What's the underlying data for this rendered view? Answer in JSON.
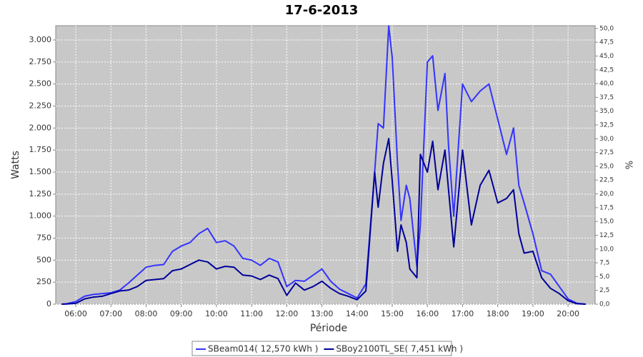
{
  "chart_data": {
    "type": "line",
    "title": "17-6-2013",
    "x_label": "Période",
    "y_label": "Watts",
    "y2_label": "%",
    "x": [
      5.6,
      5.75,
      6.0,
      6.25,
      6.5,
      6.75,
      7.0,
      7.25,
      7.5,
      7.75,
      8.0,
      8.25,
      8.5,
      8.75,
      9.0,
      9.25,
      9.5,
      9.75,
      10.0,
      10.25,
      10.5,
      10.75,
      11.0,
      11.25,
      11.5,
      11.75,
      12.0,
      12.25,
      12.5,
      12.75,
      13.0,
      13.25,
      13.5,
      13.75,
      14.0,
      14.25,
      14.5,
      14.6,
      14.75,
      14.9,
      15.0,
      15.15,
      15.25,
      15.4,
      15.5,
      15.7,
      15.8,
      16.0,
      16.15,
      16.3,
      16.5,
      16.6,
      16.75,
      17.0,
      17.25,
      17.5,
      17.75,
      18.0,
      18.25,
      18.45,
      18.6,
      18.75,
      19.0,
      19.25,
      19.5,
      19.75,
      20.0,
      20.25,
      20.5
    ],
    "series": [
      {
        "name": "SBeam014( 12,570 kWh )",
        "color": "#3333ff",
        "values": [
          0,
          5,
          30,
          90,
          110,
          120,
          130,
          160,
          240,
          330,
          420,
          440,
          450,
          600,
          660,
          700,
          800,
          860,
          700,
          720,
          660,
          520,
          500,
          440,
          520,
          480,
          200,
          270,
          260,
          330,
          400,
          260,
          170,
          120,
          70,
          230,
          1500,
          2050,
          2000,
          3160,
          2800,
          1600,
          950,
          1350,
          1200,
          430,
          900,
          2750,
          2820,
          2200,
          2620,
          1800,
          1000,
          2500,
          2300,
          2420,
          2500,
          2100,
          1700,
          2000,
          1350,
          1150,
          800,
          380,
          340,
          200,
          60,
          10,
          0
        ]
      },
      {
        "name": "SBoy2100TL_SE( 7,451 kWh )",
        "color": "#000099",
        "values": [
          0,
          2,
          10,
          60,
          80,
          90,
          120,
          150,
          160,
          200,
          270,
          280,
          290,
          380,
          400,
          450,
          500,
          480,
          400,
          430,
          420,
          330,
          320,
          280,
          330,
          290,
          100,
          240,
          160,
          200,
          260,
          180,
          120,
          90,
          50,
          150,
          1500,
          1100,
          1600,
          1880,
          1400,
          600,
          900,
          700,
          400,
          300,
          1700,
          1500,
          1850,
          1300,
          1750,
          1300,
          650,
          1750,
          900,
          1350,
          1520,
          1150,
          1200,
          1300,
          800,
          580,
          600,
          300,
          180,
          120,
          40,
          5,
          0
        ]
      }
    ],
    "xlim": [
      5.43,
      20.77
    ],
    "xticks": [
      {
        "value": 6,
        "label": "06:00"
      },
      {
        "value": 7,
        "label": "07:00"
      },
      {
        "value": 8,
        "label": "08:00"
      },
      {
        "value": 9,
        "label": "09:00"
      },
      {
        "value": 10,
        "label": "10:00"
      },
      {
        "value": 11,
        "label": "11:00"
      },
      {
        "value": 12,
        "label": "12:00"
      },
      {
        "value": 13,
        "label": "13:00"
      },
      {
        "value": 14,
        "label": "14:00"
      },
      {
        "value": 15,
        "label": "15:00"
      },
      {
        "value": 16,
        "label": "16:00"
      },
      {
        "value": 17,
        "label": "17:00"
      },
      {
        "value": 18,
        "label": "18:00"
      },
      {
        "value": 19,
        "label": "19:00"
      },
      {
        "value": 20,
        "label": "20:00"
      }
    ],
    "ylim": [
      0,
      3162
    ],
    "yticks": [
      0,
      250,
      500,
      750,
      {
        "value": 1000,
        "label": "1.000"
      },
      {
        "value": 1250,
        "label": "1.250"
      },
      {
        "value": 1500,
        "label": "1.500"
      },
      {
        "value": 1750,
        "label": "1.750"
      },
      {
        "value": 2000,
        "label": "2.000"
      },
      {
        "value": 2250,
        "label": "2.250"
      },
      {
        "value": 2500,
        "label": "2.500"
      },
      {
        "value": 2750,
        "label": "2.750"
      },
      {
        "value": 3000,
        "label": "3.000"
      }
    ],
    "y2lim": [
      0,
      50.5
    ],
    "y2ticks": [
      {
        "value": 0,
        "label": "0,0"
      },
      {
        "value": 2.5,
        "label": "2,5"
      },
      {
        "value": 5,
        "label": "5,0"
      },
      {
        "value": 7.5,
        "label": "7,5"
      },
      {
        "value": 10,
        "label": "10,0"
      },
      {
        "value": 12.5,
        "label": "12,5"
      },
      {
        "value": 15,
        "label": "15,0"
      },
      {
        "value": 17.5,
        "label": "17,5"
      },
      {
        "value": 20,
        "label": "20,0"
      },
      {
        "value": 22.5,
        "label": "22,5"
      },
      {
        "value": 25,
        "label": "25,0"
      },
      {
        "value": 27.5,
        "label": "27,5"
      },
      {
        "value": 30,
        "label": "30,0"
      },
      {
        "value": 32.5,
        "label": "32,5"
      },
      {
        "value": 35,
        "label": "35,0"
      },
      {
        "value": 37.5,
        "label": "37,5"
      },
      {
        "value": 40,
        "label": "40,0"
      },
      {
        "value": 42.5,
        "label": "42,5"
      },
      {
        "value": 45,
        "label": "45,0"
      },
      {
        "value": 47.5,
        "label": "47,5"
      },
      {
        "value": 50,
        "label": "50,0"
      }
    ],
    "grid": true,
    "legend": "bottom"
  }
}
